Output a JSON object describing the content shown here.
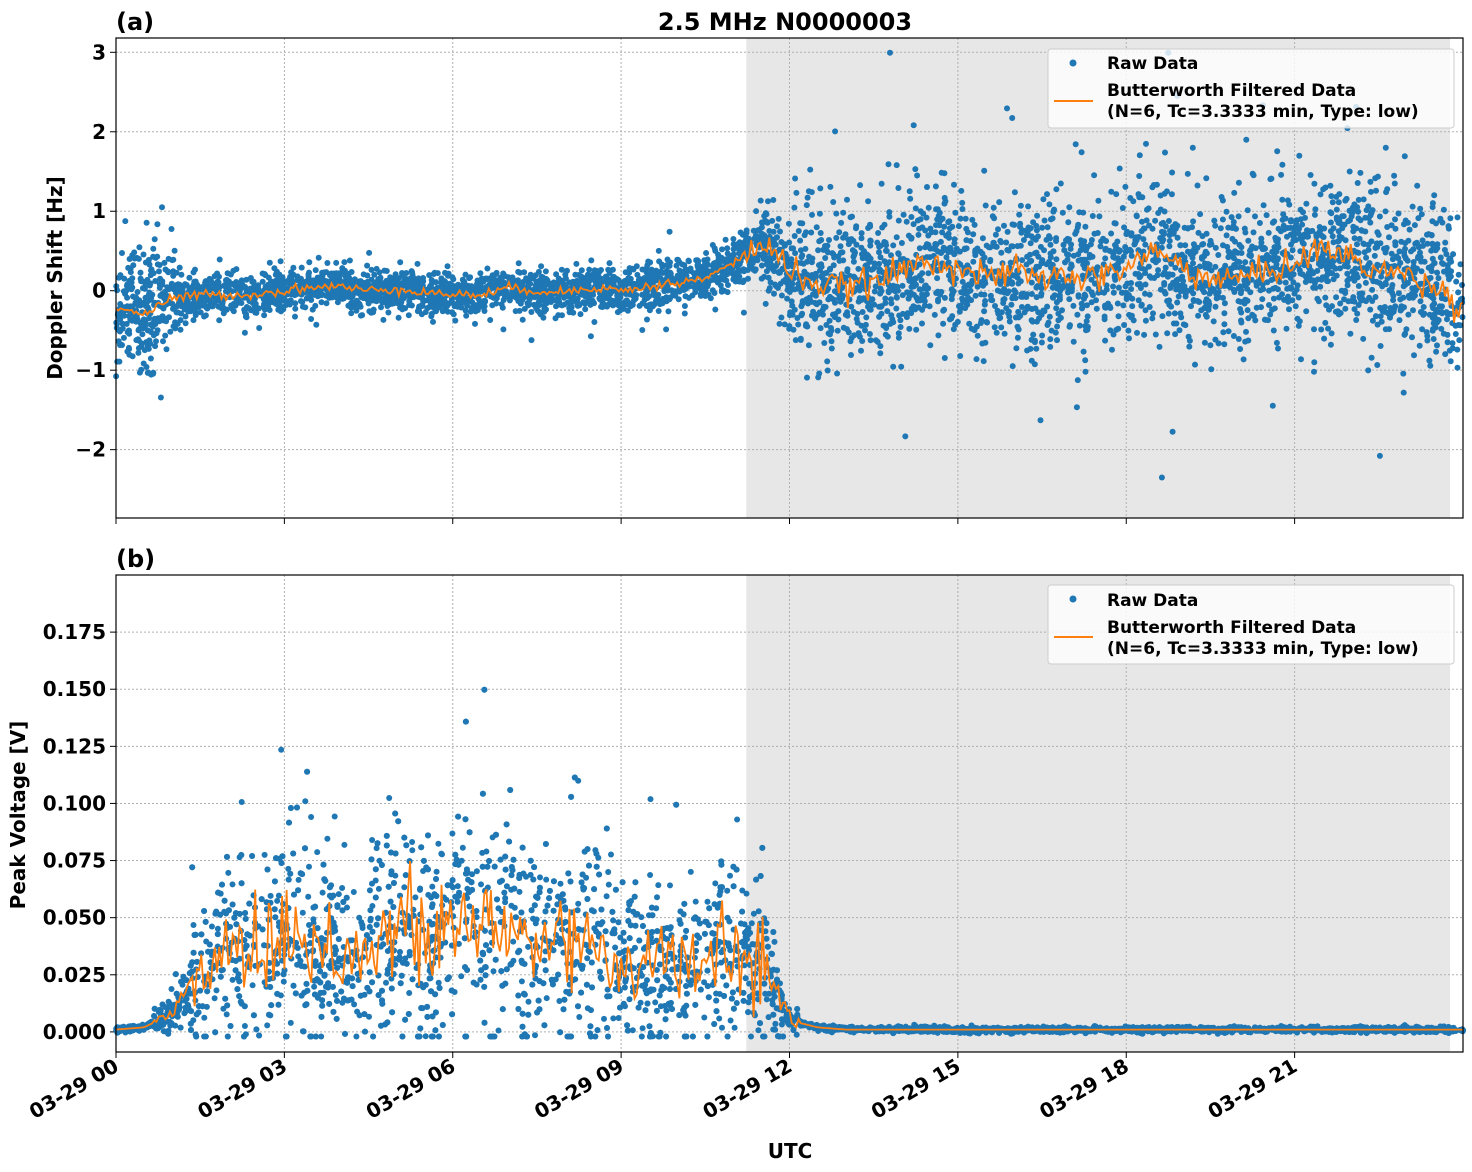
{
  "colors": {
    "raw": "#1f77b4",
    "filtered": "#ff7f0e",
    "shade": "#e7e7e7"
  },
  "chart_data": [
    {
      "type": "scatter+line",
      "panel_label": "(a)",
      "title": "2.5 MHz N0000003",
      "ylabel": "Doppler Shift [Hz]",
      "xlabel": "",
      "x_unit": "hours UTC on 03-29",
      "xlim": [
        0,
        24
      ],
      "ylim": [
        -2.86,
        3.18
      ],
      "yticks": [
        -2,
        -1,
        0,
        1,
        2,
        3
      ],
      "ytick_labels": [
        "−2",
        "−1",
        "0",
        "1",
        "2",
        "3"
      ],
      "grid": true,
      "shaded_span": [
        11.23,
        23.77
      ],
      "legend": {
        "placement": "top-right",
        "entries": [
          "Raw Data",
          "Butterworth Filtered Data",
          "(N=6, Tc=3.3333 min, Type: low)"
        ]
      },
      "filtered_series": {
        "name": "Butterworth Filtered Data",
        "x": [
          0,
          0.5,
          1,
          1.5,
          2,
          2.5,
          3,
          3.5,
          4,
          4.5,
          5,
          5.5,
          6,
          6.5,
          7,
          7.5,
          8,
          8.5,
          9,
          9.5,
          10,
          10.5,
          11,
          11.5,
          12,
          12.5,
          13,
          13.5,
          14,
          14.5,
          15,
          15.5,
          16,
          16.5,
          17,
          17.5,
          18,
          18.5,
          19,
          19.5,
          20,
          20.5,
          21,
          21.5,
          22,
          22.5,
          23,
          23.5,
          24
        ],
        "y": [
          -0.2,
          -0.3,
          -0.1,
          -0.05,
          -0.05,
          -0.05,
          0,
          0.05,
          0.05,
          0,
          0.03,
          -0.02,
          -0.05,
          -0.05,
          0.03,
          0,
          -0.02,
          0.05,
          0,
          0.05,
          0.1,
          0.15,
          0.35,
          0.6,
          0.3,
          0.05,
          0.05,
          0.1,
          0.25,
          0.4,
          0.3,
          0.15,
          0.25,
          0.15,
          0.2,
          0.15,
          0.3,
          0.5,
          0.3,
          0.15,
          0.15,
          0.25,
          0.35,
          0.55,
          0.4,
          0.25,
          0.2,
          0.05,
          -0.2
        ]
      },
      "raw_series": {
        "name": "Raw Data",
        "spread_x": [
          0,
          1,
          1.2,
          10,
          11.2,
          12.3,
          24
        ],
        "spread_sd": [
          0.35,
          0.35,
          0.13,
          0.13,
          0.16,
          0.45,
          0.45
        ]
      }
    },
    {
      "type": "scatter+line",
      "panel_label": "(b)",
      "ylabel": "Peak Voltage [V]",
      "xlabel": "UTC",
      "xlim": [
        0,
        24
      ],
      "ylim": [
        -0.0088,
        0.2
      ],
      "yticks": [
        0,
        0.025,
        0.05,
        0.075,
        0.1,
        0.125,
        0.15,
        0.175
      ],
      "ytick_labels": [
        "0.000",
        "0.025",
        "0.050",
        "0.075",
        "0.100",
        "0.125",
        "0.150",
        "0.175"
      ],
      "xticks": [
        0,
        3,
        6,
        9,
        12,
        15,
        18,
        21
      ],
      "xtick_labels": [
        "03-29 00",
        "03-29 03",
        "03-29 06",
        "03-29 09",
        "03-29 12",
        "03-29 15",
        "03-29 18",
        "03-29 21"
      ],
      "grid": true,
      "shaded_span": [
        11.23,
        23.77
      ],
      "legend": {
        "placement": "top-right",
        "entries": [
          "Raw Data",
          "Butterworth Filtered Data",
          "(N=6, Tc=3.3333 min, Type: low)"
        ]
      },
      "filtered_series": {
        "name": "Butterworth Filtered Data",
        "x": [
          0,
          0.5,
          1,
          1.5,
          2,
          2.5,
          3,
          3.5,
          4,
          4.5,
          5,
          5.5,
          6,
          6.5,
          7,
          7.5,
          8,
          8.5,
          9,
          9.5,
          10,
          10.5,
          11,
          11.5,
          12,
          12.5,
          13,
          24
        ],
        "y": [
          0.001,
          0.002,
          0.008,
          0.025,
          0.04,
          0.035,
          0.045,
          0.04,
          0.035,
          0.035,
          0.045,
          0.04,
          0.045,
          0.045,
          0.045,
          0.04,
          0.04,
          0.04,
          0.03,
          0.03,
          0.03,
          0.03,
          0.035,
          0.03,
          0.005,
          0.002,
          0.001,
          0.001
        ]
      },
      "raw_series": {
        "name": "Raw Data",
        "relative_spread": 0.55
      }
    }
  ]
}
